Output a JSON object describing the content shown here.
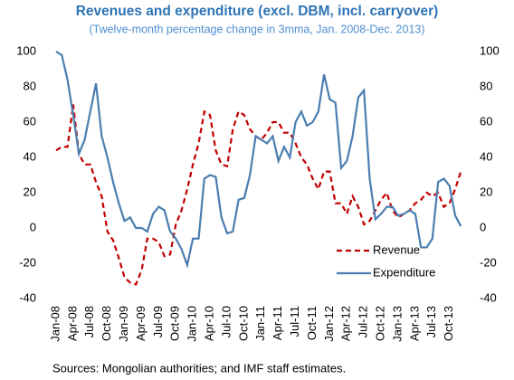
{
  "chart_data": {
    "type": "line",
    "title": "Revenues and expenditure (excl. DBM, incl. carryover)",
    "subtitle": "(Twelve-month percentage change in 3mma, Jan. 2008-Dec. 2013)",
    "source": "Sources: Mongolian authorities; and IMF staff estimates.",
    "categories": [
      "Jan-08",
      null,
      null,
      "Apr-08",
      null,
      null,
      "Jul-08",
      null,
      null,
      "Oct-08",
      null,
      null,
      "Jan-09",
      null,
      null,
      "Apr-09",
      null,
      null,
      "Jul-09",
      null,
      null,
      "Oct-09",
      null,
      null,
      "Jan-10",
      null,
      null,
      "Apr-10",
      null,
      null,
      "Jul-10",
      null,
      null,
      "Oct-10",
      null,
      null,
      "Jan-11",
      null,
      null,
      "Apr-11",
      null,
      null,
      "Jul-11",
      null,
      null,
      "Oct-11",
      null,
      null,
      "Jan-12",
      null,
      null,
      "Apr-12",
      null,
      null,
      "Jul-12",
      null,
      null,
      "Oct-12",
      null,
      null,
      "Jan-13",
      null,
      null,
      "Apr-13",
      null,
      null,
      "Jul-13",
      null,
      null,
      "Oct-13",
      null,
      null
    ],
    "series": [
      {
        "name": "Revenue",
        "color": "#c00000",
        "dash": true,
        "values": [
          44,
          46,
          46,
          70,
          42,
          36,
          36,
          26,
          18,
          -2,
          -7,
          -17,
          -28,
          -31,
          -32,
          -24,
          -6,
          -6,
          -8,
          -16,
          -15,
          2,
          10,
          22,
          36,
          48,
          66,
          64,
          44,
          36,
          35,
          56,
          66,
          64,
          56,
          52,
          50,
          54,
          60,
          60,
          54,
          54,
          48,
          40,
          36,
          28,
          22,
          32,
          32,
          14,
          14,
          8,
          18,
          12,
          2,
          4,
          10,
          16,
          20,
          10,
          6,
          8,
          10,
          14,
          16,
          20,
          18,
          20,
          12,
          14,
          22,
          32
        ]
      },
      {
        "name": "Expenditure",
        "color": "#4a7eb0",
        "dash": false,
        "values": [
          100,
          98,
          84,
          64,
          42,
          50,
          66,
          82,
          52,
          40,
          26,
          14,
          4,
          6,
          0,
          0,
          -2,
          8,
          12,
          10,
          -2,
          -6,
          -12,
          -21,
          -6,
          -6,
          28,
          30,
          29,
          6,
          -3,
          -2,
          16,
          17,
          30,
          52,
          50,
          48,
          52,
          38,
          46,
          40,
          60,
          66,
          58,
          60,
          66,
          87,
          73,
          71,
          34,
          38,
          52,
          74,
          78,
          28,
          5,
          8,
          12,
          12,
          7,
          8,
          10,
          8,
          -11,
          -11,
          -6,
          26,
          28,
          24,
          7,
          1
        ]
      }
    ],
    "ylim": [
      -40,
      100
    ],
    "yticks": [
      -40,
      -20,
      0,
      20,
      40,
      60,
      80,
      100
    ],
    "y2lim": [
      -40,
      100
    ],
    "y2ticks": [
      -40,
      -20,
      0,
      20,
      40,
      60,
      80,
      100
    ],
    "legend": "lower right"
  }
}
